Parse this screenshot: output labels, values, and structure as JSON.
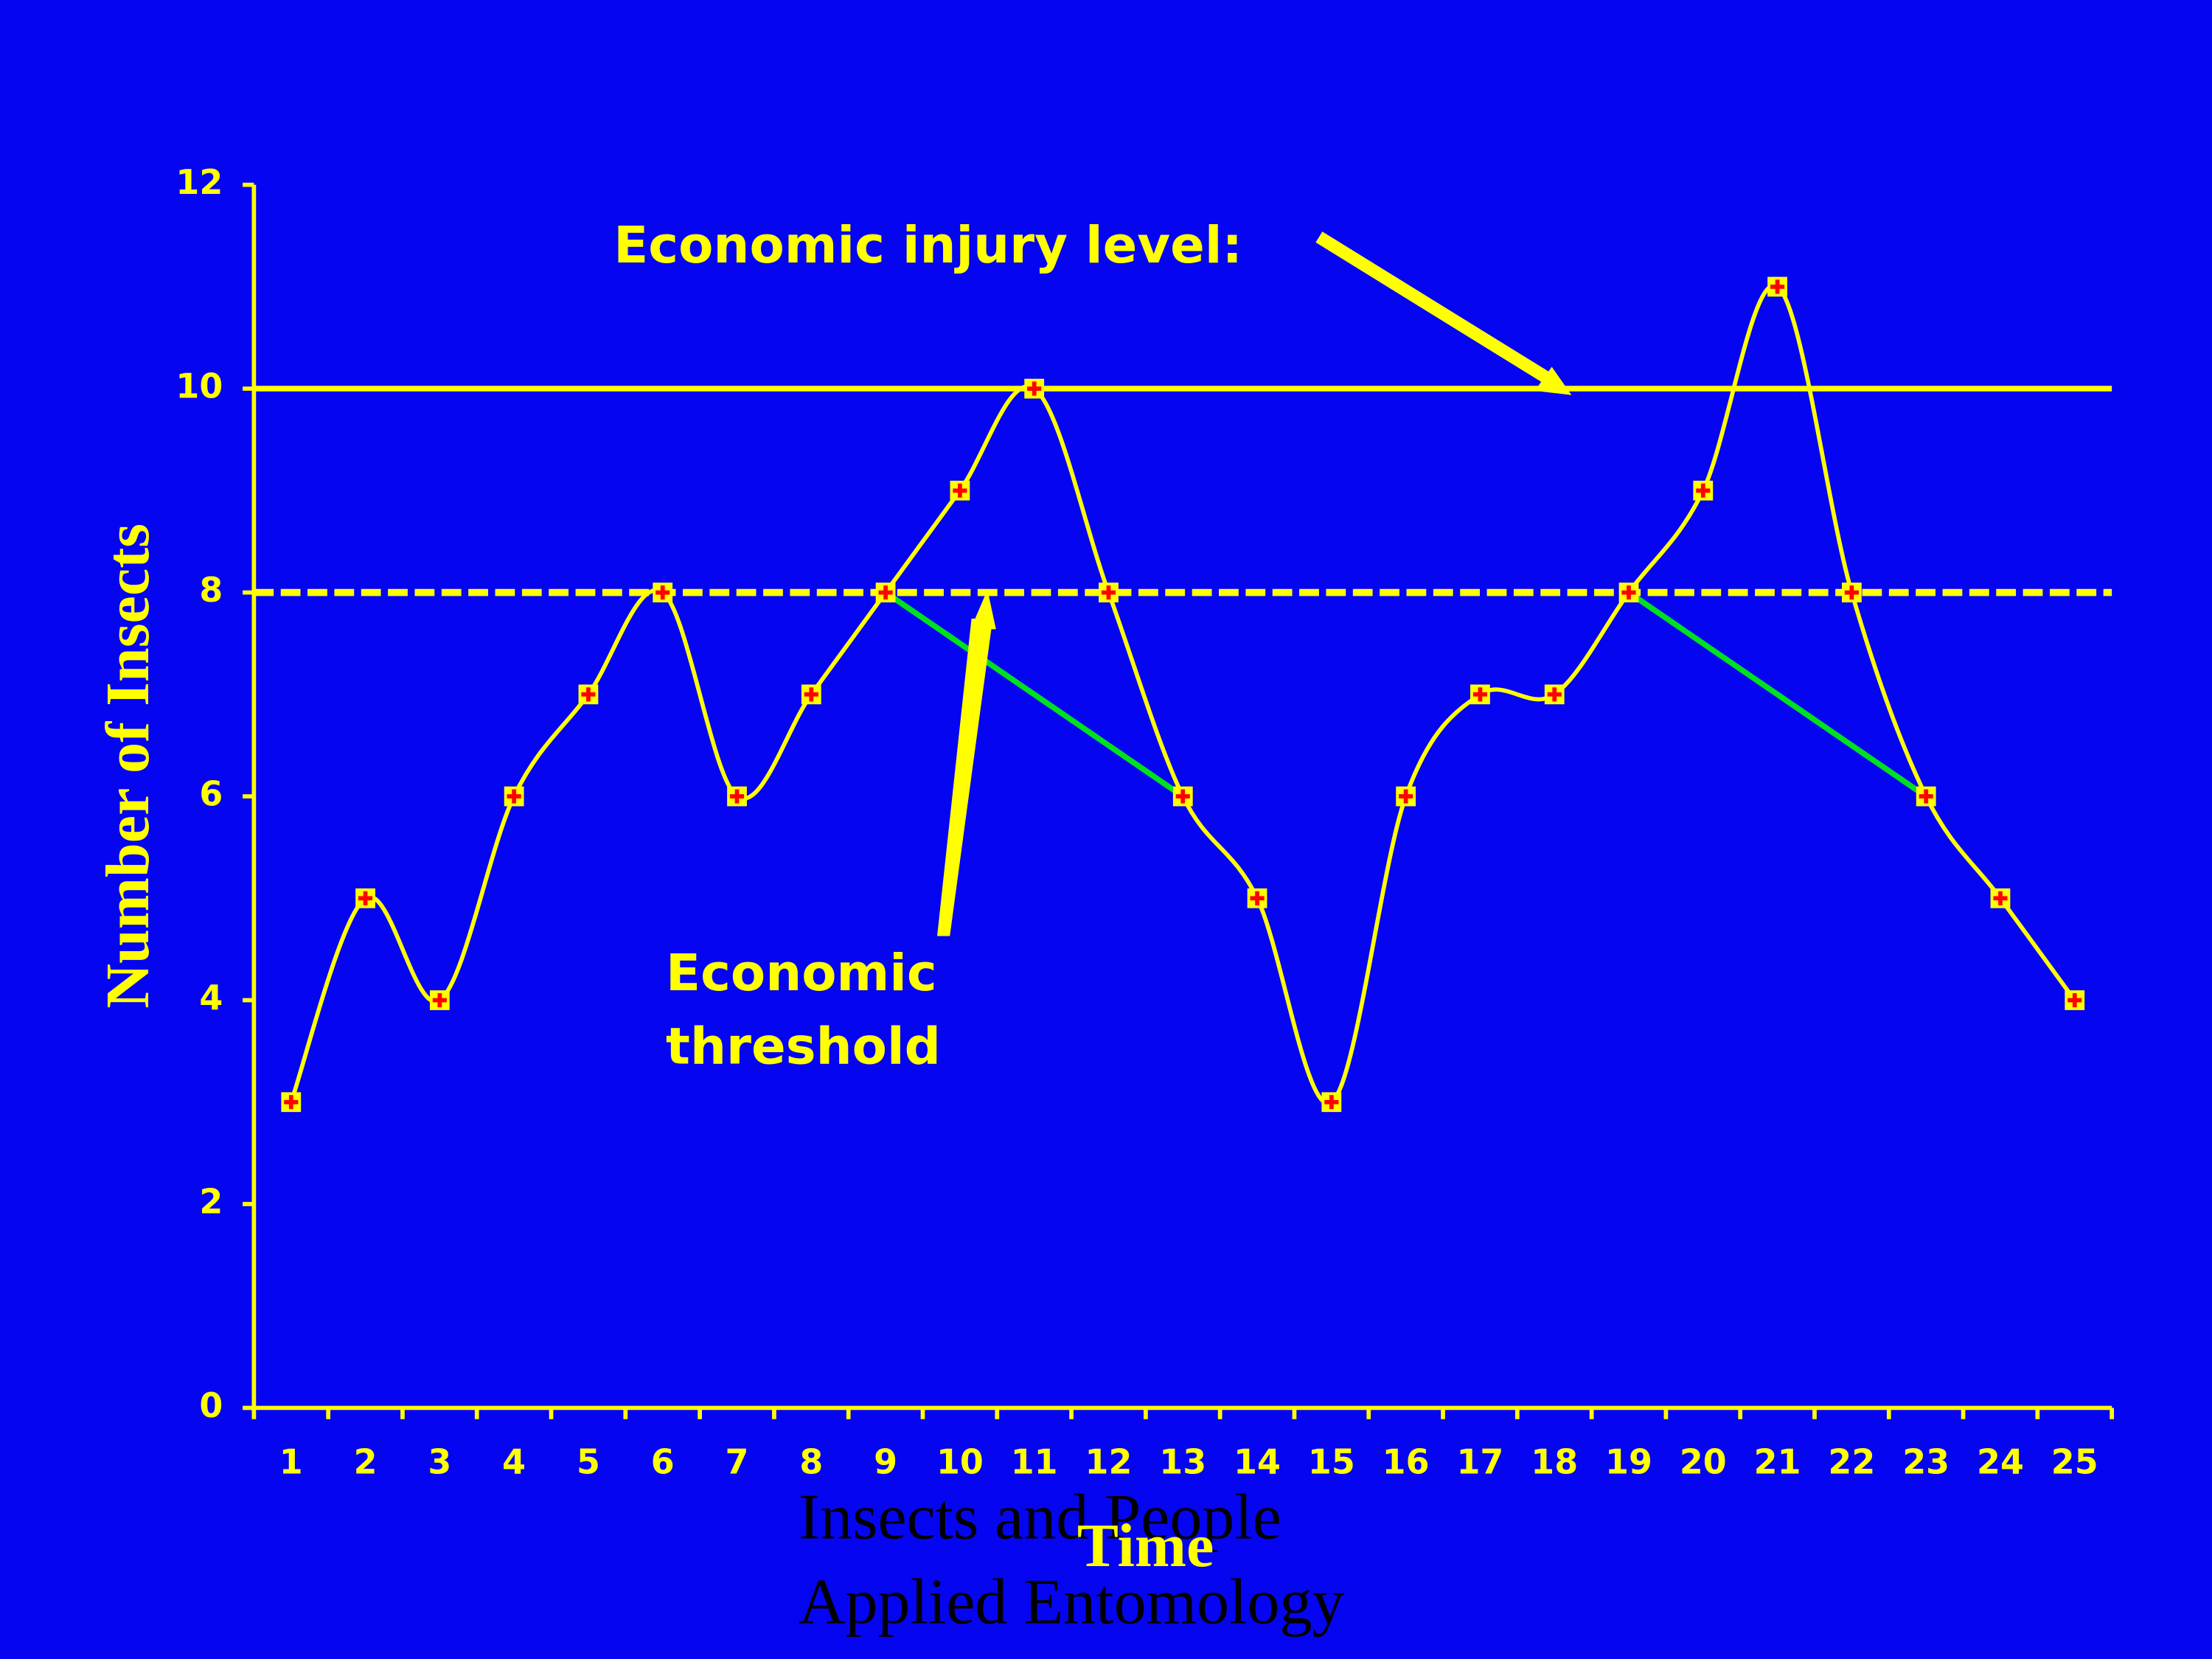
{
  "chart_data": {
    "type": "line",
    "x_label": "Time",
    "y_label": "Number of Insects",
    "categories": [
      "1",
      "2",
      "3",
      "4",
      "5",
      "6",
      "7",
      "8",
      "9",
      "10",
      "11",
      "12",
      "13",
      "14",
      "15",
      "16",
      "17",
      "18",
      "19",
      "20",
      "21",
      "22",
      "23",
      "24",
      "25"
    ],
    "values": [
      3,
      5,
      4,
      6,
      7,
      8,
      6,
      7,
      8,
      9,
      10,
      8,
      6,
      5,
      3,
      6,
      7,
      7,
      8,
      9,
      11,
      8,
      6,
      5,
      4
    ],
    "color": "#ffff00",
    "marker_color": "#ff0000",
    "ylim": [
      0,
      12
    ],
    "yticks": [
      0,
      2,
      4,
      6,
      8,
      10,
      12
    ],
    "economic_injury_level": {
      "label": "Economic injury level:",
      "value": 10
    },
    "economic_threshold": {
      "label": [
        "Economic",
        "threshold"
      ],
      "value": 8
    }
  },
  "footer": [
    "Insects and People",
    "Applied Entomology"
  ]
}
